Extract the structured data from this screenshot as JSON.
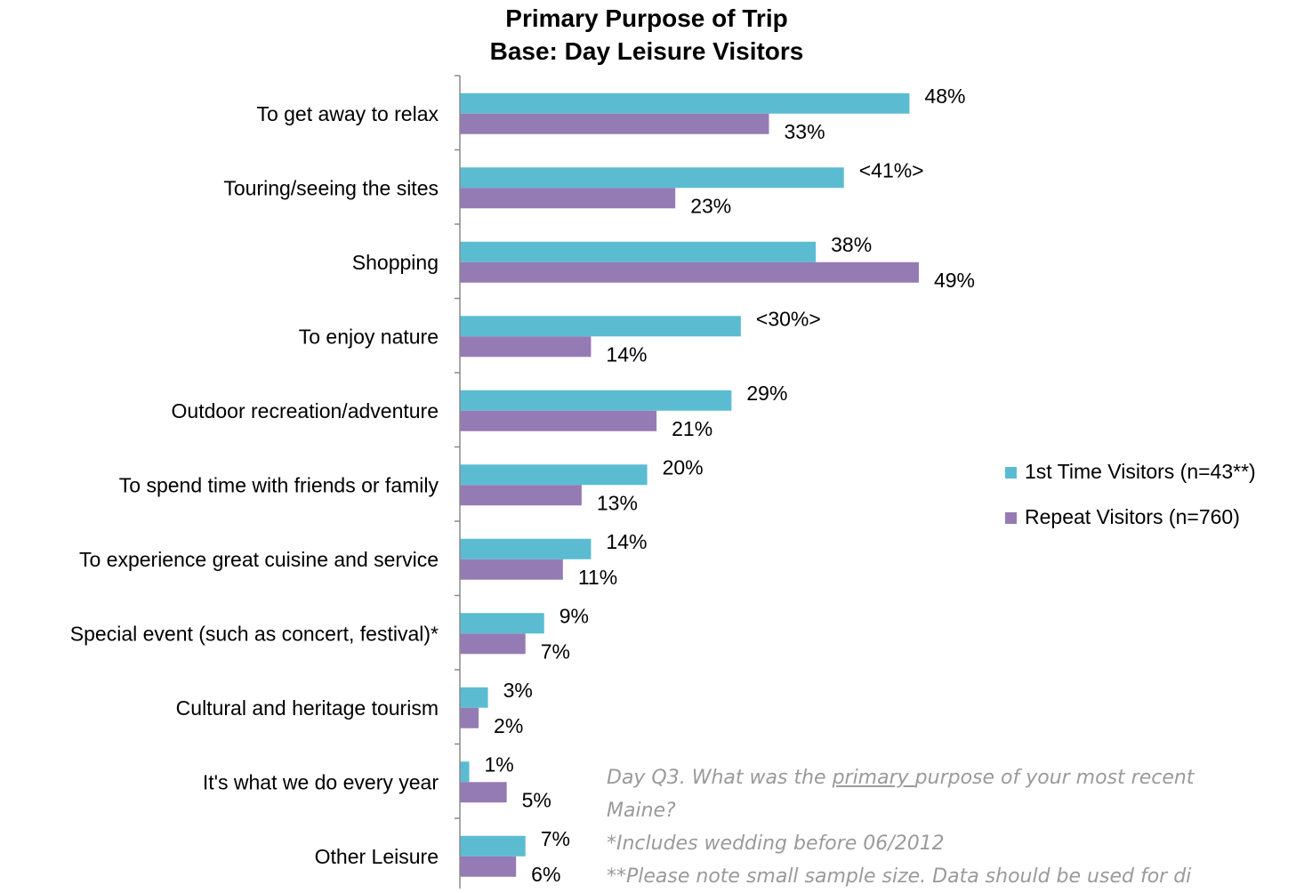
{
  "chart_data": {
    "type": "bar",
    "orientation": "horizontal",
    "title": "Primary Purpose of Trip",
    "subtitle": "Base: Day Leisure Visitors",
    "categories": [
      "To get away to relax",
      "Touring/seeing the sites",
      "Shopping",
      "To enjoy nature",
      "Outdoor recreation/adventure",
      "To spend time with friends or family",
      "To experience great cuisine and service",
      "Special event (such as concert, festival)*",
      "Cultural and heritage tourism",
      "It's what we do every year",
      "Other Leisure"
    ],
    "series": [
      {
        "name": "1st Time Visitors (n=43**)",
        "color": "#5bbcd1",
        "values": [
          48,
          41,
          38,
          30,
          29,
          20,
          14,
          9,
          3,
          1,
          7
        ],
        "labels": [
          "48%",
          "<41%>",
          "38%",
          "<30%>",
          "29%",
          "20%",
          "14%",
          "9%",
          "3%",
          "1%",
          "7%"
        ]
      },
      {
        "name": "Repeat Visitors (n=760)",
        "color": "#957bb4",
        "values": [
          33,
          23,
          49,
          14,
          21,
          13,
          11,
          7,
          2,
          5,
          6
        ],
        "labels": [
          "33%",
          "23%",
          "49%",
          "14%",
          "21%",
          "13%",
          "11%",
          "7%",
          "2%",
          "5%",
          "6%"
        ]
      }
    ],
    "xlim": [
      0,
      50
    ],
    "grid": false,
    "legend_position": "right"
  },
  "notes": {
    "q_prefix": "Day Q3.  What was the ",
    "q_underline": "primary ",
    "q_suffix": "purpose of your most recent",
    "q_line2": "Maine?",
    "footnote1": "*Includes wedding before 06/2012",
    "footnote2": "**Please note small sample size.  Data should be used for di"
  }
}
